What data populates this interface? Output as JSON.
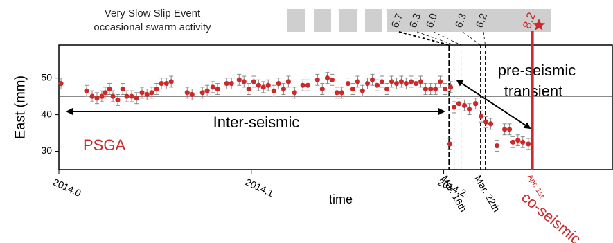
{
  "chart_data": {
    "type": "scatter",
    "header": [
      "Very Slow Slip Event",
      "occasional swarm activity"
    ],
    "x_label": "time",
    "y_label": "East (mm)",
    "station": "PSGA",
    "xlim": [
      2014,
      2014.288
    ],
    "xticks": [
      {
        "value": 2014,
        "label": "2014.0"
      },
      2014.1,
      2014.2
    ],
    "ylim": [
      25,
      59
    ],
    "yticks": [
      30,
      40,
      50
    ],
    "color": "#cc2a2a",
    "yerr": 1.5,
    "baseline": 45,
    "x": [
      2014.0011,
      2014.0144,
      2014.0173,
      2014.0198,
      2014.0223,
      2014.0241,
      2014.0263,
      2014.0281,
      2014.0306,
      2014.0332,
      2014.0353,
      2014.0378,
      2014.0404,
      2014.0432,
      2014.0458,
      2014.0483,
      2014.0508,
      2014.0533,
      2014.0559,
      2014.0584,
      2014.0667,
      2014.0692,
      2014.0746,
      2014.0771,
      2014.08,
      2014.0825,
      2014.0872,
      2014.0897,
      2014.0937,
      2014.0962,
      2014.0987,
      2014.1013,
      2014.1038,
      2014.1063,
      2014.1088,
      2014.1117,
      2014.1142,
      2014.1168,
      2014.1193,
      2014.1225,
      2014.1268,
      2014.1294,
      2014.1344,
      2014.1369,
      2014.1395,
      2014.142,
      2014.1445,
      2014.147,
      2014.1503,
      2014.1528,
      2014.1553,
      2014.1578,
      2014.1604,
      2014.1629,
      2014.1654,
      2014.1679,
      2014.1705,
      2014.173,
      2014.1755,
      2014.178,
      2014.1805,
      2014.1831,
      2014.1856,
      2014.1881,
      2014.1906,
      2014.1932,
      2014.1957,
      2014.1982,
      2014.2007,
      2014.2036,
      2014.2032,
      2014.2054,
      2014.2079,
      2014.2108,
      2014.2133,
      2014.2166,
      2014.2195,
      2014.222,
      2014.2245,
      2014.2277,
      2014.2317,
      2014.2342,
      2014.236,
      2014.2386,
      2014.2411,
      2014.244
    ],
    "values": [
      48.5,
      46.5,
      45,
      44.5,
      45,
      46,
      47,
      45,
      44,
      47,
      45,
      45,
      44.5,
      46,
      45.5,
      46,
      47,
      48.5,
      48.5,
      49,
      46,
      45.5,
      46,
      46.5,
      47.5,
      47,
      48.5,
      48.5,
      49.5,
      49,
      47,
      49,
      48,
      47.5,
      48,
      46.5,
      48.5,
      47,
      49,
      46,
      48,
      48,
      49.5,
      47,
      50,
      49.5,
      46,
      46,
      48.5,
      47,
      49,
      46.5,
      48.5,
      49.5,
      48,
      49,
      47,
      49,
      48.5,
      49,
      48.5,
      49,
      48.5,
      49,
      47,
      47,
      47,
      49,
      47,
      47.5,
      32,
      42,
      43,
      42.5,
      41.5,
      43,
      39.5,
      38,
      37.5,
      31.5,
      36,
      36,
      32.5,
      33,
      32.5,
      32
    ],
    "event_lines": [
      2014.2029,
      2014.2054,
      2014.209,
      2014.2191,
      2014.2216,
      2014.2461
    ],
    "magnitudes": [
      "6.7",
      "6.3",
      "6.0",
      "6.3",
      "6.2",
      "8.2"
    ],
    "event_dates": [
      "Mar. 16th",
      "Mar. 22th",
      "Apr. 1st"
    ],
    "phases": [
      "Inter-seismic",
      "pre-seismic",
      "transient",
      "co-seismic"
    ]
  }
}
